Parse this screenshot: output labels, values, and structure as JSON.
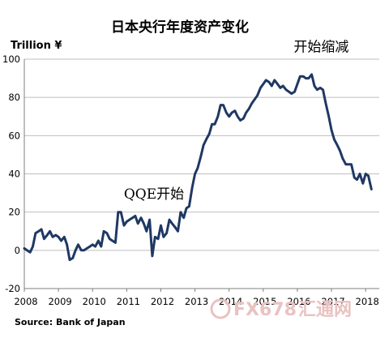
{
  "chart_data": {
    "type": "line",
    "title": "日本央行年度资产变化",
    "ylabel": "Trillion ¥",
    "source": "Source: Bank of Japan",
    "ylim": [
      -20,
      100
    ],
    "xlim": [
      2008.0,
      2018.4
    ],
    "yticks": [
      -20,
      0,
      20,
      40,
      60,
      80,
      100
    ],
    "xticks": [
      2008,
      2009,
      2010,
      2011,
      2012,
      2013,
      2014,
      2015,
      2016,
      2017,
      2018
    ],
    "grid": "horizontal",
    "legend": "none",
    "annotations": [
      {
        "text": "QQE开始",
        "x": 2011.8,
        "y": 27
      },
      {
        "text": "开始缩减",
        "x": 2016.7,
        "y": 104
      }
    ],
    "series": [
      {
        "color": "#1f3864",
        "points": [
          [
            2008.0,
            1
          ],
          [
            2008.08,
            0
          ],
          [
            2008.17,
            -1
          ],
          [
            2008.25,
            2
          ],
          [
            2008.33,
            9
          ],
          [
            2008.42,
            10
          ],
          [
            2008.5,
            11
          ],
          [
            2008.58,
            6
          ],
          [
            2008.67,
            8
          ],
          [
            2008.75,
            10
          ],
          [
            2008.83,
            7
          ],
          [
            2008.92,
            8
          ],
          [
            2009.0,
            7
          ],
          [
            2009.08,
            5
          ],
          [
            2009.17,
            7
          ],
          [
            2009.25,
            3
          ],
          [
            2009.33,
            -5
          ],
          [
            2009.42,
            -4
          ],
          [
            2009.5,
            0
          ],
          [
            2009.58,
            3
          ],
          [
            2009.67,
            0
          ],
          [
            2009.75,
            0
          ],
          [
            2009.83,
            1
          ],
          [
            2009.92,
            2
          ],
          [
            2010.0,
            3
          ],
          [
            2010.08,
            2
          ],
          [
            2010.17,
            5
          ],
          [
            2010.25,
            2
          ],
          [
            2010.33,
            10
          ],
          [
            2010.42,
            9
          ],
          [
            2010.5,
            6
          ],
          [
            2010.58,
            5
          ],
          [
            2010.67,
            4
          ],
          [
            2010.75,
            20
          ],
          [
            2010.83,
            20
          ],
          [
            2010.92,
            13
          ],
          [
            2011.0,
            15
          ],
          [
            2011.08,
            16
          ],
          [
            2011.17,
            17
          ],
          [
            2011.25,
            18
          ],
          [
            2011.33,
            14
          ],
          [
            2011.42,
            17
          ],
          [
            2011.5,
            14
          ],
          [
            2011.58,
            10
          ],
          [
            2011.67,
            16
          ],
          [
            2011.75,
            -3
          ],
          [
            2011.83,
            7
          ],
          [
            2011.92,
            6
          ],
          [
            2012.0,
            13
          ],
          [
            2012.08,
            7
          ],
          [
            2012.17,
            9
          ],
          [
            2012.25,
            16
          ],
          [
            2012.33,
            14
          ],
          [
            2012.42,
            12
          ],
          [
            2012.5,
            10
          ],
          [
            2012.58,
            20
          ],
          [
            2012.67,
            17
          ],
          [
            2012.75,
            22
          ],
          [
            2012.83,
            23
          ],
          [
            2012.92,
            33
          ],
          [
            2013.0,
            40
          ],
          [
            2013.08,
            43
          ],
          [
            2013.17,
            49
          ],
          [
            2013.25,
            55
          ],
          [
            2013.33,
            58
          ],
          [
            2013.42,
            61
          ],
          [
            2013.5,
            66
          ],
          [
            2013.58,
            66
          ],
          [
            2013.67,
            70
          ],
          [
            2013.75,
            76
          ],
          [
            2013.83,
            76
          ],
          [
            2013.92,
            72
          ],
          [
            2014.0,
            70
          ],
          [
            2014.08,
            72
          ],
          [
            2014.17,
            73
          ],
          [
            2014.25,
            70
          ],
          [
            2014.33,
            68
          ],
          [
            2014.42,
            69
          ],
          [
            2014.5,
            72
          ],
          [
            2014.58,
            74
          ],
          [
            2014.67,
            77
          ],
          [
            2014.75,
            79
          ],
          [
            2014.83,
            81
          ],
          [
            2014.92,
            85
          ],
          [
            2015.0,
            87
          ],
          [
            2015.08,
            89
          ],
          [
            2015.17,
            88
          ],
          [
            2015.25,
            86
          ],
          [
            2015.33,
            89
          ],
          [
            2015.42,
            87
          ],
          [
            2015.5,
            85
          ],
          [
            2015.58,
            86
          ],
          [
            2015.67,
            84
          ],
          [
            2015.75,
            83
          ],
          [
            2015.83,
            82
          ],
          [
            2015.92,
            83
          ],
          [
            2016.0,
            87
          ],
          [
            2016.08,
            91
          ],
          [
            2016.17,
            91
          ],
          [
            2016.25,
            90
          ],
          [
            2016.33,
            90
          ],
          [
            2016.42,
            92
          ],
          [
            2016.5,
            86
          ],
          [
            2016.58,
            84
          ],
          [
            2016.67,
            85
          ],
          [
            2016.75,
            84
          ],
          [
            2016.83,
            77
          ],
          [
            2016.92,
            70
          ],
          [
            2017.0,
            63
          ],
          [
            2017.08,
            58
          ],
          [
            2017.17,
            55
          ],
          [
            2017.25,
            52
          ],
          [
            2017.33,
            48
          ],
          [
            2017.42,
            45
          ],
          [
            2017.5,
            45
          ],
          [
            2017.58,
            45
          ],
          [
            2017.67,
            38
          ],
          [
            2017.75,
            37
          ],
          [
            2017.83,
            40
          ],
          [
            2017.92,
            35
          ],
          [
            2018.0,
            40
          ],
          [
            2018.08,
            39
          ],
          [
            2018.17,
            32
          ]
        ]
      }
    ]
  },
  "watermark": {
    "text": "FX678",
    "suffix": "汇通网",
    "color": "#e9c2c2"
  }
}
